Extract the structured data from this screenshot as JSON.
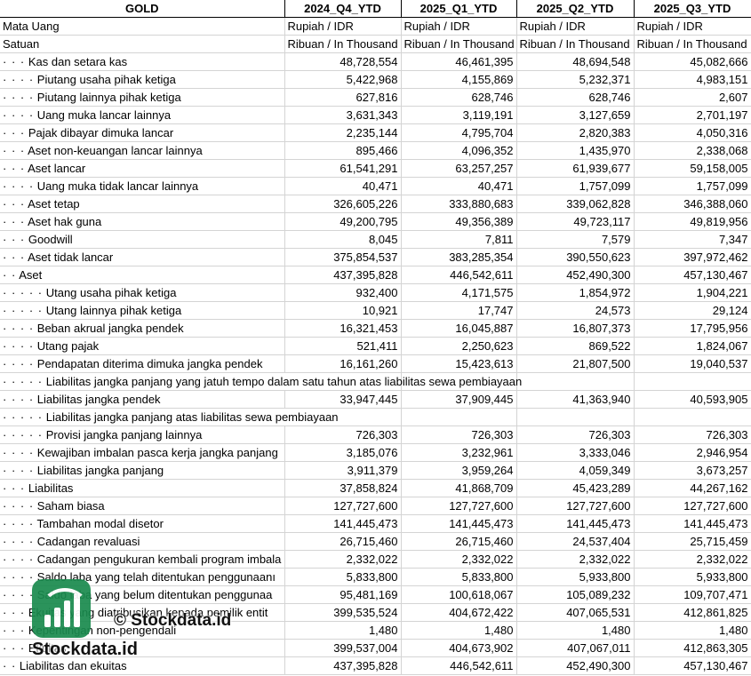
{
  "header": [
    "GOLD",
    "2024_Q4_YTD",
    "2025_Q1_YTD",
    "2025_Q2_YTD",
    "2025_Q3_YTD"
  ],
  "currency_row": {
    "label": "Mata Uang",
    "values": [
      "Rupiah / IDR",
      "Rupiah / IDR",
      "Rupiah / IDR",
      "Rupiah / IDR"
    ]
  },
  "unit_row": {
    "label": "Satuan",
    "values": [
      "Ribuan / In Thousand",
      "Ribuan / In Thousand",
      "Ribuan / In Thousand",
      "Ribuan / In Thousand"
    ]
  },
  "rows": [
    {
      "dots": "· · ·",
      "label": "Kas dan setara kas",
      "values": [
        "48,728,554",
        "46,461,395",
        "48,694,548",
        "45,082,666"
      ]
    },
    {
      "dots": "· · · ·",
      "label": "Piutang usaha pihak ketiga",
      "values": [
        "5,422,968",
        "4,155,869",
        "5,232,371",
        "4,983,151"
      ]
    },
    {
      "dots": "· · · ·",
      "label": "Piutang lainnya pihak ketiga",
      "values": [
        "627,816",
        "628,746",
        "628,746",
        "2,607"
      ]
    },
    {
      "dots": "· · · ·",
      "label": "Uang muka lancar lainnya",
      "values": [
        "3,631,343",
        "3,119,191",
        "3,127,659",
        "2,701,197"
      ]
    },
    {
      "dots": "· · ·",
      "label": "Pajak dibayar dimuka lancar",
      "values": [
        "2,235,144",
        "4,795,704",
        "2,820,383",
        "4,050,316"
      ]
    },
    {
      "dots": "· · ·",
      "label": "Aset non-keuangan lancar lainnya",
      "values": [
        "895,466",
        "4,096,352",
        "1,435,970",
        "2,338,068"
      ]
    },
    {
      "dots": "· · ·",
      "label": "Aset lancar",
      "values": [
        "61,541,291",
        "63,257,257",
        "61,939,677",
        "59,158,005"
      ]
    },
    {
      "dots": "· · · ·",
      "label": "Uang muka tidak lancar lainnya",
      "values": [
        "40,471",
        "40,471",
        "1,757,099",
        "1,757,099"
      ]
    },
    {
      "dots": "· · ·",
      "label": "Aset tetap",
      "values": [
        "326,605,226",
        "333,880,683",
        "339,062,828",
        "346,388,060"
      ]
    },
    {
      "dots": "· · ·",
      "label": "Aset hak guna",
      "values": [
        "49,200,795",
        "49,356,389",
        "49,723,117",
        "49,819,956"
      ]
    },
    {
      "dots": "· · ·",
      "label": "Goodwill",
      "values": [
        "8,045",
        "7,811",
        "7,579",
        "7,347"
      ]
    },
    {
      "dots": "· · ·",
      "label": "Aset tidak lancar",
      "values": [
        "375,854,537",
        "383,285,354",
        "390,550,623",
        "397,972,462"
      ]
    },
    {
      "dots": "· ·",
      "label": "Aset",
      "values": [
        "437,395,828",
        "446,542,611",
        "452,490,300",
        "457,130,467"
      ]
    },
    {
      "dots": "· · · · ·",
      "label": "Utang usaha pihak ketiga",
      "values": [
        "932,400",
        "4,171,575",
        "1,854,972",
        "1,904,221"
      ]
    },
    {
      "dots": "· · · · ·",
      "label": "Utang lainnya pihak ketiga",
      "values": [
        "10,921",
        "17,747",
        "24,573",
        "29,124"
      ]
    },
    {
      "dots": "· · · ·",
      "label": "Beban akrual jangka pendek",
      "values": [
        "16,321,453",
        "16,045,887",
        "16,807,373",
        "17,795,956"
      ]
    },
    {
      "dots": "· · · ·",
      "label": "Utang pajak",
      "values": [
        "521,411",
        "2,250,623",
        "869,522",
        "1,824,067"
      ]
    },
    {
      "dots": "· · · ·",
      "label": "Pendapatan diterima dimuka jangka pendek",
      "values": [
        "16,161,260",
        "15,423,613",
        "21,807,500",
        "19,040,537"
      ]
    },
    {
      "dots": "· · · · ·",
      "label": "Liabilitas jangka panjang yang jatuh tempo dalam satu tahun atas liabilitas sewa pembiayaan",
      "values": [
        "",
        "",
        "",
        ""
      ],
      "spill": true
    },
    {
      "dots": "· · · ·",
      "label": "Liabilitas jangka pendek",
      "values": [
        "33,947,445",
        "37,909,445",
        "41,363,940",
        "40,593,905"
      ]
    },
    {
      "dots": "· · · · ·",
      "label": "Liabilitas jangka panjang atas liabilitas sewa pembiayaan",
      "values": [
        "",
        "",
        "",
        ""
      ],
      "spill": true
    },
    {
      "dots": "· · · · ·",
      "label": "Provisi jangka panjang lainnya",
      "values": [
        "726,303",
        "726,303",
        "726,303",
        "726,303"
      ]
    },
    {
      "dots": "· · · ·",
      "label": "Kewajiban imbalan pasca kerja jangka panjang",
      "values": [
        "3,185,076",
        "3,232,961",
        "3,333,046",
        "2,946,954"
      ]
    },
    {
      "dots": "· · · ·",
      "label": "Liabilitas jangka panjang",
      "values": [
        "3,911,379",
        "3,959,264",
        "4,059,349",
        "3,673,257"
      ]
    },
    {
      "dots": "· · ·",
      "label": "Liabilitas",
      "values": [
        "37,858,824",
        "41,868,709",
        "45,423,289",
        "44,267,162"
      ]
    },
    {
      "dots": "· · · ·",
      "label": "Saham biasa",
      "values": [
        "127,727,600",
        "127,727,600",
        "127,727,600",
        "127,727,600"
      ]
    },
    {
      "dots": "· · · ·",
      "label": "Tambahan modal disetor",
      "values": [
        "141,445,473",
        "141,445,473",
        "141,445,473",
        "141,445,473"
      ]
    },
    {
      "dots": "· · · ·",
      "label": "Cadangan revaluasi",
      "values": [
        "26,715,460",
        "26,715,460",
        "24,537,404",
        "25,715,459"
      ]
    },
    {
      "dots": "· · · ·",
      "label": "Cadangan pengukuran kembali program imbala",
      "values": [
        "2,332,022",
        "2,332,022",
        "2,332,022",
        "2,332,022"
      ]
    },
    {
      "dots": "· · · ·",
      "label": "Saldo laba yang telah ditentukan penggunaanı",
      "values": [
        "5,833,800",
        "5,833,800",
        "5,933,800",
        "5,933,800"
      ]
    },
    {
      "dots": "· · · ·",
      "label": "Saldo laba yang belum ditentukan penggunaa",
      "values": [
        "95,481,169",
        "100,618,067",
        "105,089,232",
        "109,707,471"
      ]
    },
    {
      "dots": "· · ·",
      "label": "Ekuitas yang diatribusikan kepada pemilik entit",
      "values": [
        "399,535,524",
        "404,672,422",
        "407,065,531",
        "412,861,825"
      ]
    },
    {
      "dots": "· · ·",
      "label": "Kepentingan non-pengendali",
      "values": [
        "1,480",
        "1,480",
        "1,480",
        "1,480"
      ]
    },
    {
      "dots": "· · ·",
      "label": "Ekuitas",
      "values": [
        "399,537,004",
        "404,673,902",
        "407,067,011",
        "412,863,305"
      ]
    },
    {
      "dots": "· ·",
      "label": "Liabilitas dan ekuitas",
      "values": [
        "437,395,828",
        "446,542,611",
        "452,490,300",
        "457,130,467"
      ]
    }
  ],
  "watermark": {
    "copyright": "© Stockdata.id",
    "brand": "Stockdata.id",
    "logo_color": "#1a8a4e"
  }
}
